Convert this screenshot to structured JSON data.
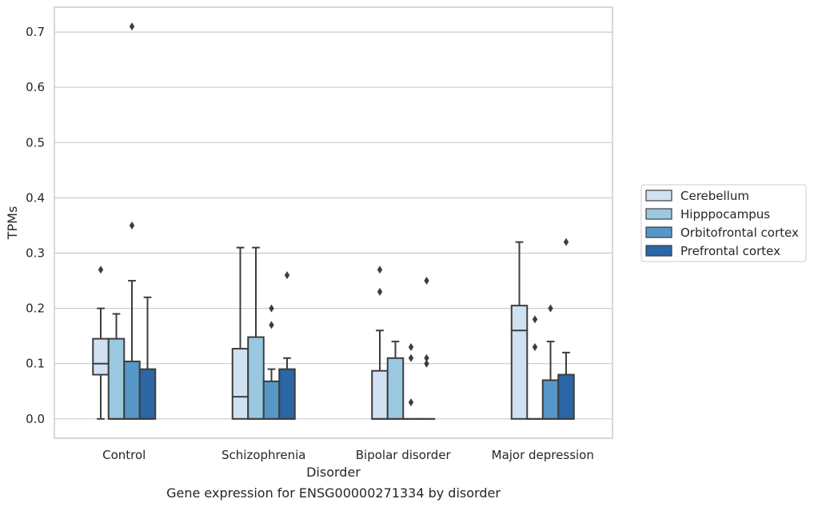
{
  "chart_data": {
    "type": "box",
    "caption": "Gene expression for ENSG00000271334 by disorder",
    "xlabel": "Disorder",
    "ylabel": "TPMs",
    "ylim": [
      -0.035,
      0.745
    ],
    "yticks": [
      0.0,
      0.1,
      0.2,
      0.3,
      0.4,
      0.5,
      0.6,
      0.7
    ],
    "ytick_labels": [
      "0.0",
      "0.1",
      "0.2",
      "0.3",
      "0.4",
      "0.5",
      "0.6",
      "0.7"
    ],
    "grid": "horizontal",
    "legend_position": "right",
    "categories": [
      "Control",
      "Schizophrenia",
      "Bipolar disorder",
      "Major depression"
    ],
    "series": [
      {
        "name": "Cerebellum",
        "color": "#d0e1f2",
        "boxes": [
          {
            "q1": 0.08,
            "median": 0.1,
            "q3": 0.145,
            "whisker_low": 0.0,
            "whisker_high": 0.2,
            "outliers": [
              0.27
            ]
          },
          {
            "q1": 0.0,
            "median": 0.04,
            "q3": 0.127,
            "whisker_low": 0.0,
            "whisker_high": 0.31,
            "outliers": []
          },
          {
            "q1": 0.0,
            "median": 0.0,
            "q3": 0.087,
            "whisker_low": 0.0,
            "whisker_high": 0.16,
            "outliers": [
              0.23,
              0.27
            ]
          },
          {
            "q1": 0.0,
            "median": 0.16,
            "q3": 0.205,
            "whisker_low": 0.0,
            "whisker_high": 0.32,
            "outliers": []
          }
        ]
      },
      {
        "name": "Hipppocampus",
        "color": "#9ac8e0",
        "boxes": [
          {
            "q1": 0.0,
            "median": 0.0,
            "q3": 0.145,
            "whisker_low": 0.0,
            "whisker_high": 0.19,
            "outliers": []
          },
          {
            "q1": 0.0,
            "median": 0.0,
            "q3": 0.148,
            "whisker_low": 0.0,
            "whisker_high": 0.31,
            "outliers": []
          },
          {
            "q1": 0.0,
            "median": 0.0,
            "q3": 0.11,
            "whisker_low": 0.0,
            "whisker_high": 0.14,
            "outliers": []
          },
          {
            "q1": 0.0,
            "median": 0.0,
            "q3": 0.0,
            "whisker_low": 0.0,
            "whisker_high": 0.0,
            "outliers": [
              0.13,
              0.18
            ]
          }
        ]
      },
      {
        "name": "Orbitofrontal cortex",
        "color": "#5597c7",
        "boxes": [
          {
            "q1": 0.0,
            "median": 0.0,
            "q3": 0.104,
            "whisker_low": 0.0,
            "whisker_high": 0.25,
            "outliers": [
              0.35,
              0.71
            ]
          },
          {
            "q1": 0.0,
            "median": 0.0,
            "q3": 0.068,
            "whisker_low": 0.0,
            "whisker_high": 0.09,
            "outliers": [
              0.17,
              0.2
            ]
          },
          {
            "q1": 0.0,
            "median": 0.0,
            "q3": 0.0,
            "whisker_low": 0.0,
            "whisker_high": 0.0,
            "outliers": [
              0.03,
              0.11,
              0.13
            ]
          },
          {
            "q1": 0.0,
            "median": 0.0,
            "q3": 0.07,
            "whisker_low": 0.0,
            "whisker_high": 0.14,
            "outliers": [
              0.2
            ]
          }
        ]
      },
      {
        "name": "Prefrontal cortex",
        "color": "#2b66a6",
        "boxes": [
          {
            "q1": 0.0,
            "median": 0.0,
            "q3": 0.09,
            "whisker_low": 0.0,
            "whisker_high": 0.22,
            "outliers": []
          },
          {
            "q1": 0.0,
            "median": 0.0,
            "q3": 0.09,
            "whisker_low": 0.0,
            "whisker_high": 0.11,
            "outliers": [
              0.26
            ]
          },
          {
            "q1": 0.0,
            "median": 0.0,
            "q3": 0.0,
            "whisker_low": 0.0,
            "whisker_high": 0.0,
            "outliers": [
              0.1,
              0.11,
              0.25
            ]
          },
          {
            "q1": 0.0,
            "median": 0.0,
            "q3": 0.08,
            "whisker_low": 0.0,
            "whisker_high": 0.12,
            "outliers": [
              0.32
            ]
          }
        ]
      }
    ]
  }
}
